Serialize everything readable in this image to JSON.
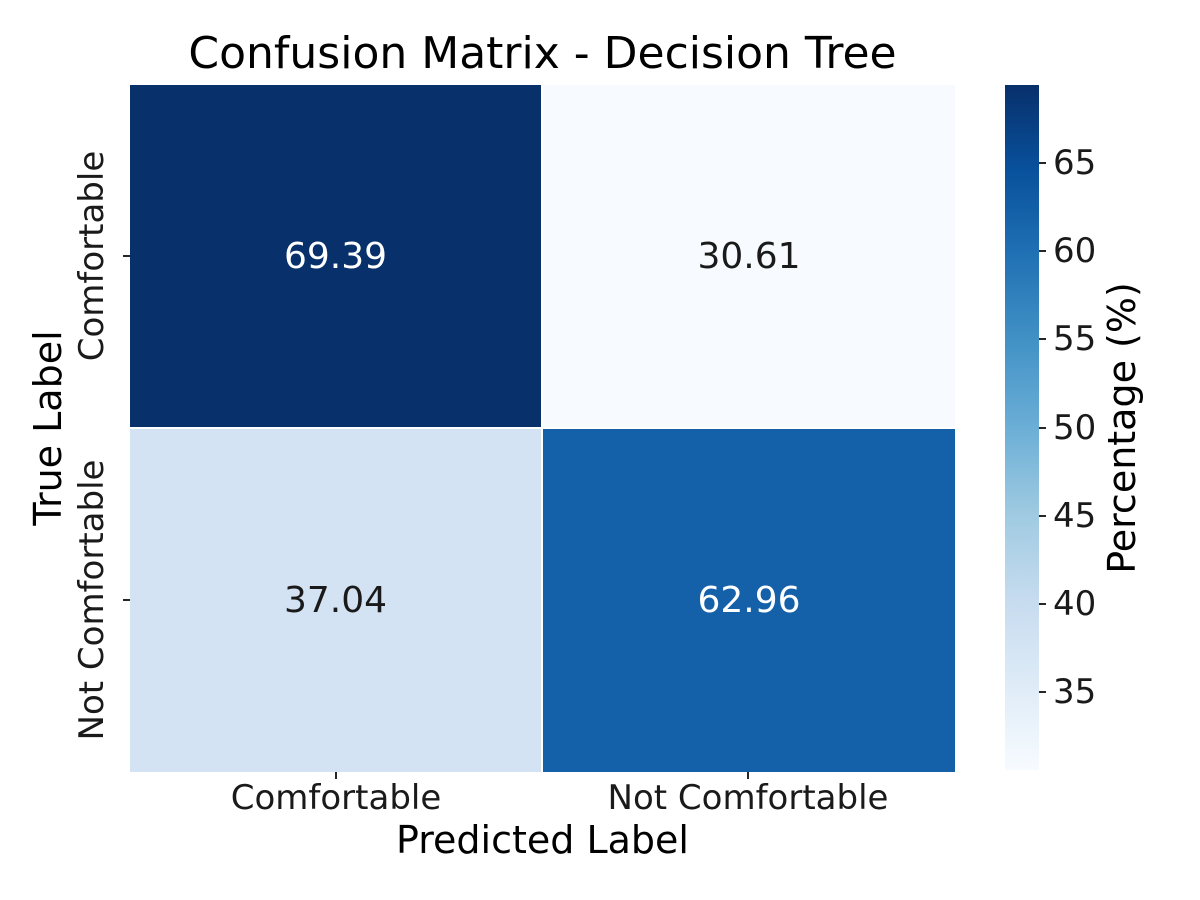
{
  "chart_data": {
    "type": "heatmap",
    "title": "Confusion Matrix - Decision Tree",
    "xlabel": "Predicted Label",
    "ylabel": "True Label",
    "x_tick_labels": [
      "Comfortable",
      "Not Comfortable"
    ],
    "y_tick_labels": [
      "Comfortable",
      "Not Comfortable"
    ],
    "rows": [
      "Comfortable",
      "Not Comfortable"
    ],
    "cols": [
      "Comfortable",
      "Not Comfortable"
    ],
    "values": [
      [
        69.39,
        30.61
      ],
      [
        37.04,
        62.96
      ]
    ],
    "cell_labels": [
      [
        "69.39",
        "30.61"
      ],
      [
        "37.04",
        "62.96"
      ]
    ],
    "cell_colors": [
      [
        "#08306b",
        "#f7fbff"
      ],
      [
        "#d3e3f3",
        "#1561a9"
      ]
    ],
    "cell_text_colors": [
      [
        "#ffffff",
        "#1a1a1a"
      ],
      [
        "#1a1a1a",
        "#ffffff"
      ]
    ],
    "grid_line_color": "#ffffff",
    "background_color": "#ffffff",
    "legend_position": "right-colorbar",
    "grid": false,
    "colorbar": {
      "label": "Percentage (%)",
      "tick_labels": [
        "35",
        "40",
        "45",
        "50",
        "55",
        "60",
        "65"
      ],
      "tick_values": [
        35,
        40,
        45,
        50,
        55,
        60,
        65
      ],
      "vmin": 30.61,
      "vmax": 69.39,
      "colormap": "Blues",
      "gradient": [
        {
          "pos": 0.0,
          "color": "#f7fbff"
        },
        {
          "pos": 0.125,
          "color": "#deebf7"
        },
        {
          "pos": 0.25,
          "color": "#c6dbef"
        },
        {
          "pos": 0.375,
          "color": "#9ecae1"
        },
        {
          "pos": 0.5,
          "color": "#6baed6"
        },
        {
          "pos": 0.625,
          "color": "#4292c6"
        },
        {
          "pos": 0.75,
          "color": "#2171b5"
        },
        {
          "pos": 0.875,
          "color": "#08519c"
        },
        {
          "pos": 1.0,
          "color": "#08306b"
        }
      ]
    }
  }
}
